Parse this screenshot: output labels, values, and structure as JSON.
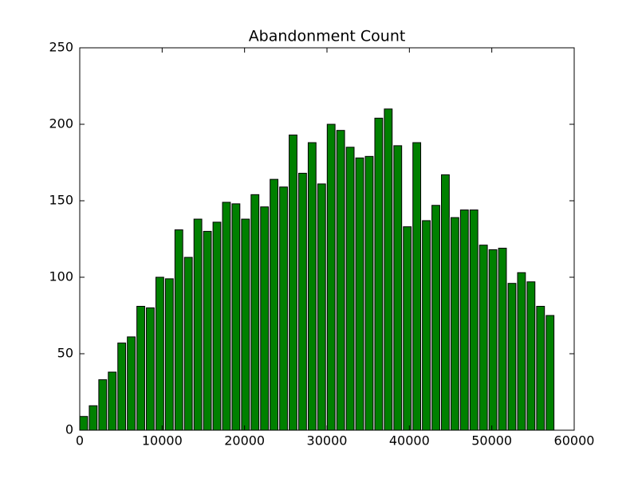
{
  "chart_data": {
    "type": "bar",
    "title": "Abandonment Count",
    "x": [
      0,
      1155,
      2310,
      3465,
      4620,
      5775,
      6930,
      8085,
      9240,
      10395,
      11550,
      12705,
      13860,
      15015,
      16170,
      17325,
      18480,
      19635,
      20790,
      21945,
      23100,
      24255,
      25410,
      26565,
      27720,
      28875,
      30030,
      31185,
      32340,
      33495,
      34650,
      35805,
      36960,
      38115,
      39270,
      40425,
      41580,
      42735,
      43890,
      45045,
      46200,
      47355,
      48510,
      49665,
      50820,
      51975,
      53130,
      54285,
      55440,
      56595
    ],
    "values": [
      9,
      16,
      33,
      38,
      57,
      61,
      81,
      80,
      100,
      99,
      131,
      113,
      138,
      130,
      136,
      149,
      148,
      138,
      154,
      146,
      164,
      159,
      193,
      168,
      188,
      161,
      200,
      196,
      185,
      178,
      179,
      204,
      210,
      186,
      133,
      188,
      137,
      147,
      167,
      139,
      144,
      144,
      121,
      118,
      119,
      96,
      103,
      97,
      81,
      75
    ],
    "bar_width": 950,
    "color": "#008000",
    "xlim": [
      0,
      60000
    ],
    "xticks": [
      0,
      10000,
      20000,
      30000,
      40000,
      50000,
      60000
    ],
    "ylim": [
      0,
      250
    ],
    "yticks": [
      0,
      50,
      100,
      150,
      200,
      250
    ],
    "grid": false
  }
}
